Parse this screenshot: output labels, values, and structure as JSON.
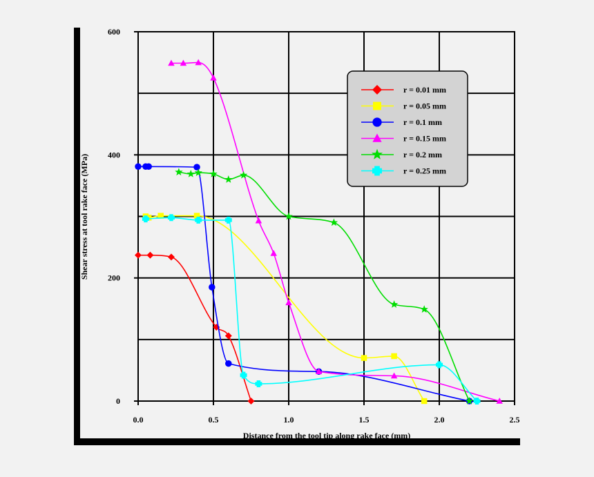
{
  "chart_data": {
    "type": "line",
    "title": "",
    "xlabel": "Distance from the tool tip along rake face (mm)",
    "ylabel": "Shear stress at tool rake face (MPa)",
    "xlim": [
      0,
      2.5
    ],
    "ylim": [
      0,
      600
    ],
    "x_ticks": [
      "0.0",
      "0.5",
      "1.0",
      "1.5",
      "2.0",
      "2.5"
    ],
    "y_ticks": [
      "0",
      "200",
      "400",
      "600"
    ],
    "x_tick_values": [
      0,
      0.5,
      1.0,
      1.5,
      2.0,
      2.5
    ],
    "y_tick_values": [
      0,
      200,
      400,
      600
    ],
    "grid": true,
    "legend_position": "top-right",
    "series": [
      {
        "name": "r = 0.01 mm",
        "color": "#ff0000",
        "marker": "diamond",
        "x": [
          0.0,
          0.08,
          0.22,
          0.52,
          0.6,
          0.75
        ],
        "y": [
          237,
          237,
          234,
          120,
          106,
          0
        ]
      },
      {
        "name": "r = 0.05 mm",
        "color": "#ffff00",
        "marker": "square",
        "x": [
          0.05,
          0.07,
          0.15,
          0.39,
          1.5,
          1.7,
          1.9
        ],
        "y": [
          300,
          298,
          301,
          301,
          70,
          73,
          0
        ]
      },
      {
        "name": "r = 0.1 mm",
        "color": "#0000ff",
        "marker": "circle",
        "x": [
          0.0,
          0.05,
          0.07,
          0.39,
          0.49,
          0.6,
          1.2,
          2.2
        ],
        "y": [
          381,
          381,
          381,
          380,
          185,
          61,
          48,
          0
        ]
      },
      {
        "name": "r = 0.15 mm",
        "color": "#ff00ff",
        "marker": "triangle",
        "x": [
          0.22,
          0.3,
          0.4,
          0.5,
          0.8,
          0.9,
          1.0,
          1.2,
          1.7,
          2.4
        ],
        "y": [
          549,
          549,
          550,
          525,
          293,
          240,
          160,
          48,
          41,
          0
        ]
      },
      {
        "name": "r = 0.2 mm",
        "color": "#00dd00",
        "marker": "star",
        "x": [
          0.27,
          0.35,
          0.4,
          0.5,
          0.6,
          0.7,
          1.0,
          1.3,
          1.7,
          1.9,
          2.2
        ],
        "y": [
          372,
          369,
          371,
          369,
          360,
          367,
          300,
          290,
          157,
          149,
          0
        ]
      },
      {
        "name": "r = 0.25 mm",
        "color": "#00ffff",
        "marker": "plus",
        "x": [
          0.05,
          0.22,
          0.4,
          0.6,
          0.7,
          0.8,
          2.0,
          2.25
        ],
        "y": [
          296,
          298,
          294,
          294,
          42,
          28,
          59,
          0
        ]
      }
    ]
  }
}
